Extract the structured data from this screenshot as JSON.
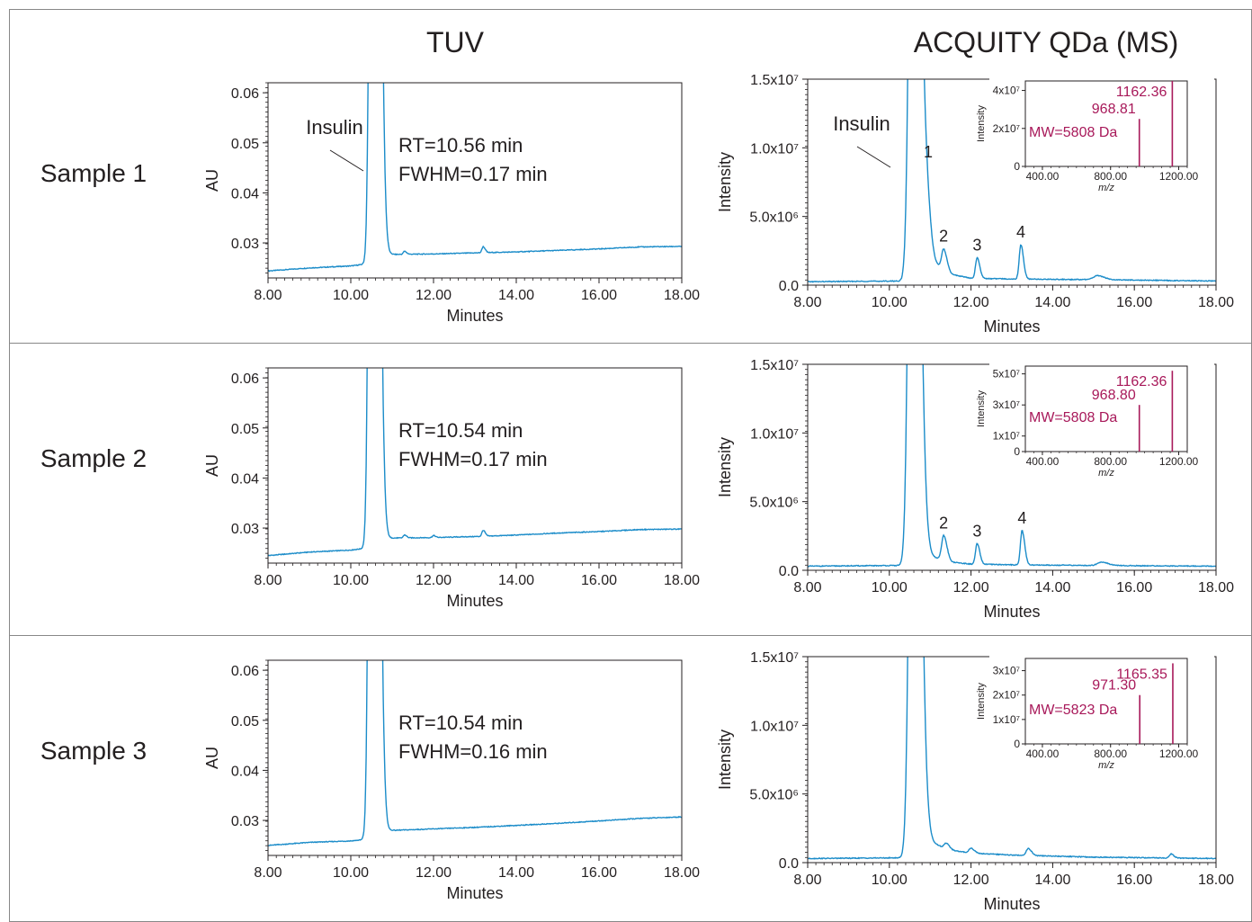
{
  "colors": {
    "trace": "#1b8cc9",
    "spectrum": "#a8195a",
    "text": "#231f20",
    "frame": "#888888"
  },
  "header": {
    "tuv": "TUV",
    "ms": "ACQUITY QDa (MS)"
  },
  "rows": [
    {
      "sample": "Sample 1",
      "tuv": {
        "ylabel": "AU",
        "xlabel": "Minutes",
        "peak_label": "Insulin",
        "rt": "RT=10.56 min",
        "fwhm": "FWHM=0.17 min"
      },
      "ms": {
        "ylabel": "Intensity",
        "xlabel": "Minutes",
        "peak_label": "Insulin",
        "peaks": [
          "1",
          "2",
          "3",
          "4"
        ],
        "inset": {
          "ylabel": "Intensity",
          "xlabel": "m/z",
          "yticks": [
            "4x10⁷",
            "2x10⁷",
            "0"
          ],
          "major": "1162.36",
          "minor": "968.81",
          "mw": "MW=5808 Da"
        }
      }
    },
    {
      "sample": "Sample 2",
      "tuv": {
        "ylabel": "AU",
        "xlabel": "Minutes",
        "peak_label": "",
        "rt": "RT=10.54 min",
        "fwhm": "FWHM=0.17 min"
      },
      "ms": {
        "ylabel": "Intensity",
        "xlabel": "Minutes",
        "peak_label": "",
        "peaks": [
          "2",
          "3",
          "4"
        ],
        "inset": {
          "ylabel": "Intensity",
          "xlabel": "m/z",
          "yticks": [
            "5x10⁷",
            "3x10⁷",
            "1x10⁷",
            "0"
          ],
          "major": "1162.36",
          "minor": "968.80",
          "mw": "MW=5808 Da"
        }
      }
    },
    {
      "sample": "Sample 3",
      "tuv": {
        "ylabel": "AU",
        "xlabel": "Minutes",
        "peak_label": "",
        "rt": "RT=10.54 min",
        "fwhm": "FWHM=0.16 min"
      },
      "ms": {
        "ylabel": "Intensity",
        "xlabel": "Minutes",
        "peak_label": "",
        "peaks": [],
        "inset": {
          "ylabel": "Intensity",
          "xlabel": "m/z",
          "yticks": [
            "3x10⁷",
            "2x10⁷",
            "1x10⁷",
            "0"
          ],
          "major": "1165.35",
          "minor": "971.30",
          "mw": "MW=5823 Da"
        }
      }
    }
  ],
  "chart_data": [
    {
      "type": "line",
      "panel": "Sample 1 TUV",
      "xlabel": "Minutes",
      "ylabel": "AU",
      "xlim": [
        8,
        18
      ],
      "ylim": [
        0.023,
        0.062
      ],
      "xticks": [
        "8.00",
        "10.00",
        "12.00",
        "14.00",
        "16.00",
        "18.00"
      ],
      "yticks": [
        "0.06",
        "0.05",
        "0.04",
        "0.03"
      ],
      "baseline": [
        [
          8.0,
          0.0244
        ],
        [
          9.0,
          0.025
        ],
        [
          10.0,
          0.0254
        ],
        [
          10.4,
          0.0258
        ],
        [
          11.0,
          0.0277
        ],
        [
          12.0,
          0.0278
        ],
        [
          13.0,
          0.028
        ],
        [
          14.0,
          0.0282
        ],
        [
          15.0,
          0.0285
        ],
        [
          16.0,
          0.0288
        ],
        [
          17.0,
          0.0292
        ],
        [
          18.0,
          0.0293
        ]
      ],
      "peaks": [
        {
          "x": 10.56,
          "y": 0.3,
          "w": 0.07
        },
        {
          "x": 11.3,
          "y": 0.0006,
          "w": 0.03
        },
        {
          "x": 13.2,
          "y": 0.0012,
          "w": 0.03
        }
      ],
      "annotations": [
        "Insulin",
        "RT=10.56 min",
        "FWHM=0.17 min"
      ]
    },
    {
      "type": "line",
      "panel": "Sample 1 MS",
      "xlabel": "Minutes",
      "ylabel": "Intensity",
      "xlim": [
        8,
        18
      ],
      "ylim": [
        0,
        15000000
      ],
      "xticks": [
        "8.00",
        "10.00",
        "12.00",
        "14.00",
        "16.00",
        "18.00"
      ],
      "yticks": [
        "1.5x10⁷",
        "1.0x10⁷",
        "5.0x10⁶",
        "0.0"
      ],
      "baseline": [
        [
          8.0,
          250000
        ],
        [
          10.3,
          300000
        ],
        [
          11.0,
          1800000
        ],
        [
          11.5,
          800000
        ],
        [
          12.0,
          500000
        ],
        [
          13.0,
          450000
        ],
        [
          15.0,
          400000
        ],
        [
          18.0,
          300000
        ]
      ],
      "peaks": [
        {
          "x": 10.6,
          "y": 60000000,
          "w": 0.09
        },
        {
          "x": 10.93,
          "y": 2800000,
          "w": 0.06,
          "label": "1"
        },
        {
          "x": 11.33,
          "y": 1500000,
          "w": 0.05,
          "label": "2"
        },
        {
          "x": 12.15,
          "y": 1500000,
          "w": 0.04,
          "label": "3"
        },
        {
          "x": 13.22,
          "y": 2500000,
          "w": 0.04,
          "label": "4"
        },
        {
          "x": 15.1,
          "y": 300000,
          "w": 0.1
        }
      ],
      "annotations": [
        "Insulin"
      ],
      "inset": {
        "xlabel": "m/z",
        "ylabel": "Intensity",
        "xlim": [
          300,
          1250
        ],
        "ylim": [
          0,
          45000000
        ],
        "xticks": [
          "400.00",
          "800.00",
          "1200.00"
        ],
        "sticks": [
          {
            "x": 968.81,
            "y": 25000000
          },
          {
            "x": 1162.36,
            "y": 45000000
          }
        ]
      }
    },
    {
      "type": "line",
      "panel": "Sample 2 TUV",
      "xlabel": "Minutes",
      "ylabel": "AU",
      "xlim": [
        8,
        18
      ],
      "ylim": [
        0.023,
        0.062
      ],
      "xticks": [
        "8.00",
        "10.00",
        "12.00",
        "14.00",
        "16.00",
        "18.00"
      ],
      "yticks": [
        "0.06",
        "0.05",
        "0.04",
        "0.03"
      ],
      "baseline": [
        [
          8.0,
          0.0245
        ],
        [
          9.0,
          0.0252
        ],
        [
          10.0,
          0.0256
        ],
        [
          10.4,
          0.026
        ],
        [
          11.0,
          0.028
        ],
        [
          12.0,
          0.0281
        ],
        [
          13.0,
          0.0283
        ],
        [
          14.0,
          0.0286
        ],
        [
          15.0,
          0.029
        ],
        [
          16.0,
          0.0293
        ],
        [
          17.0,
          0.0297
        ],
        [
          18.0,
          0.0298
        ]
      ],
      "peaks": [
        {
          "x": 10.54,
          "y": 0.3,
          "w": 0.07
        },
        {
          "x": 11.3,
          "y": 0.0006,
          "w": 0.03
        },
        {
          "x": 12.0,
          "y": 0.0004,
          "w": 0.03
        },
        {
          "x": 13.2,
          "y": 0.0012,
          "w": 0.03
        }
      ],
      "annotations": [
        "RT=10.54 min",
        "FWHM=0.17 min"
      ]
    },
    {
      "type": "line",
      "panel": "Sample 2 MS",
      "xlabel": "Minutes",
      "ylabel": "Intensity",
      "xlim": [
        8,
        18
      ],
      "ylim": [
        0,
        15000000
      ],
      "xticks": [
        "8.00",
        "10.00",
        "12.00",
        "14.00",
        "16.00",
        "18.00"
      ],
      "yticks": [
        "1.5x10⁷",
        "1.0x10⁷",
        "5.0x10⁶",
        "0.0"
      ],
      "baseline": [
        [
          8.0,
          300000
        ],
        [
          10.3,
          350000
        ],
        [
          11.0,
          1000000
        ],
        [
          11.5,
          600000
        ],
        [
          12.0,
          450000
        ],
        [
          13.0,
          400000
        ],
        [
          15.0,
          350000
        ],
        [
          18.0,
          300000
        ]
      ],
      "peaks": [
        {
          "x": 10.58,
          "y": 60000000,
          "w": 0.09
        },
        {
          "x": 11.33,
          "y": 1800000,
          "w": 0.05,
          "label": "2"
        },
        {
          "x": 12.15,
          "y": 1500000,
          "w": 0.04,
          "label": "3"
        },
        {
          "x": 13.25,
          "y": 2500000,
          "w": 0.04,
          "label": "4"
        },
        {
          "x": 15.2,
          "y": 250000,
          "w": 0.1
        }
      ],
      "annotations": [],
      "inset": {
        "xlabel": "m/z",
        "ylabel": "Intensity",
        "xlim": [
          300,
          1250
        ],
        "ylim": [
          0,
          55000000
        ],
        "xticks": [
          "400.00",
          "800.00",
          "1200.00"
        ],
        "sticks": [
          {
            "x": 968.8,
            "y": 30000000
          },
          {
            "x": 1162.36,
            "y": 52000000
          }
        ]
      }
    },
    {
      "type": "line",
      "panel": "Sample 3 TUV",
      "xlabel": "Minutes",
      "ylabel": "AU",
      "xlim": [
        8,
        18
      ],
      "ylim": [
        0.023,
        0.062
      ],
      "xticks": [
        "8.00",
        "10.00",
        "12.00",
        "14.00",
        "16.00",
        "18.00"
      ],
      "yticks": [
        "0.06",
        "0.05",
        "0.04",
        "0.03"
      ],
      "baseline": [
        [
          8.0,
          0.025
        ],
        [
          9.0,
          0.0256
        ],
        [
          10.0,
          0.0259
        ],
        [
          10.4,
          0.0262
        ],
        [
          11.0,
          0.028
        ],
        [
          12.0,
          0.0283
        ],
        [
          13.0,
          0.0286
        ],
        [
          14.0,
          0.029
        ],
        [
          15.0,
          0.0294
        ],
        [
          16.0,
          0.0299
        ],
        [
          17.0,
          0.0304
        ],
        [
          18.0,
          0.0307
        ]
      ],
      "peaks": [
        {
          "x": 10.54,
          "y": 0.3,
          "w": 0.07
        }
      ],
      "annotations": [
        "RT=10.54 min",
        "FWHM=0.16 min"
      ]
    },
    {
      "type": "line",
      "panel": "Sample 3 MS",
      "xlabel": "Minutes",
      "ylabel": "Intensity",
      "xlim": [
        8,
        18
      ],
      "ylim": [
        0,
        15000000
      ],
      "xticks": [
        "8.00",
        "10.00",
        "12.00",
        "14.00",
        "16.00",
        "18.00"
      ],
      "yticks": [
        "1.5x10⁷",
        "1.0x10⁷",
        "5.0x10⁶",
        "0.0"
      ],
      "baseline": [
        [
          8.0,
          300000
        ],
        [
          10.3,
          350000
        ],
        [
          11.0,
          1500000
        ],
        [
          11.5,
          900000
        ],
        [
          12.0,
          700000
        ],
        [
          13.0,
          550000
        ],
        [
          15.0,
          400000
        ],
        [
          18.0,
          300000
        ]
      ],
      "peaks": [
        {
          "x": 10.6,
          "y": 60000000,
          "w": 0.09
        },
        {
          "x": 11.4,
          "y": 400000,
          "w": 0.05
        },
        {
          "x": 12.0,
          "y": 350000,
          "w": 0.05
        },
        {
          "x": 13.4,
          "y": 500000,
          "w": 0.05
        },
        {
          "x": 16.9,
          "y": 300000,
          "w": 0.04
        }
      ],
      "annotations": [],
      "inset": {
        "xlabel": "m/z",
        "ylabel": "Intensity",
        "xlim": [
          300,
          1250
        ],
        "ylim": [
          0,
          35000000
        ],
        "xticks": [
          "400.00",
          "800.00",
          "1200.00"
        ],
        "sticks": [
          {
            "x": 971.3,
            "y": 20000000
          },
          {
            "x": 1165.35,
            "y": 33000000
          }
        ]
      }
    }
  ]
}
